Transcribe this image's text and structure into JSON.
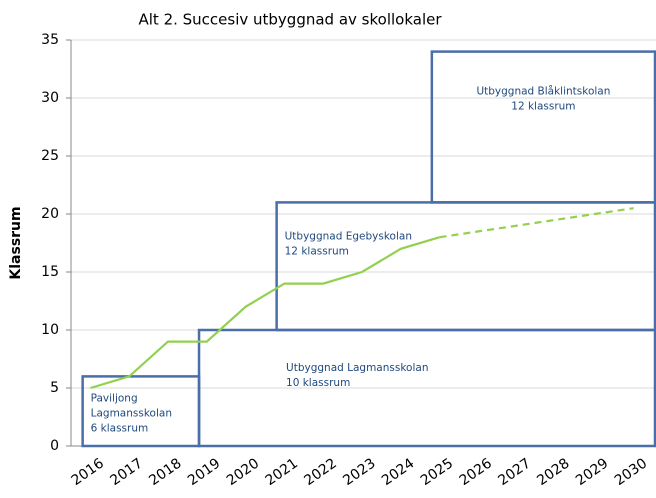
{
  "chart_data": {
    "type": "line",
    "title": "Alt 2. Succesiv utbyggnad av skollokaler",
    "y_label": "Klassrum",
    "categories": [
      "2016",
      "2017",
      "2018",
      "2019",
      "2020",
      "2021",
      "2022",
      "2023",
      "2024",
      "2025",
      "2026",
      "2027",
      "2028",
      "2029",
      "2030"
    ],
    "series": [
      {
        "color": "#92d050",
        "style": "solid",
        "values": [
          5,
          6,
          9,
          9,
          12,
          14,
          14,
          15,
          17,
          18,
          null,
          null,
          null,
          null,
          null
        ]
      },
      {
        "color": "#92d050",
        "style": "dashed",
        "values": [
          null,
          null,
          null,
          null,
          null,
          null,
          null,
          null,
          null,
          18,
          18.5,
          19,
          19.5,
          20,
          20.5
        ]
      }
    ],
    "boxes": [
      {
        "lines": [
          "Paviljong",
          "Lagmansskolan",
          "6 klassrum"
        ],
        "from": "2016",
        "to": "2019",
        "ylim": [
          0,
          6
        ]
      },
      {
        "lines": [
          "Utbyggnad Lagmansskolan",
          "10 klassrum"
        ],
        "from": "2019",
        "ylim": [
          0,
          10
        ]
      },
      {
        "lines": [
          "Utbyggnad Egebyskolan",
          "12 klassrum"
        ],
        "from": "2021",
        "ylim": [
          10,
          21
        ]
      },
      {
        "lines": [
          "Utbyggnad Blåklintskolan",
          "12 klassrum"
        ],
        "from": "2025",
        "ylim": [
          21,
          34
        ]
      }
    ],
    "box_color": "#4a6ea8",
    "ylim": [
      0,
      35
    ],
    "yticks": [
      0,
      5,
      10,
      15,
      20,
      25,
      30,
      35
    ],
    "grid": true
  }
}
